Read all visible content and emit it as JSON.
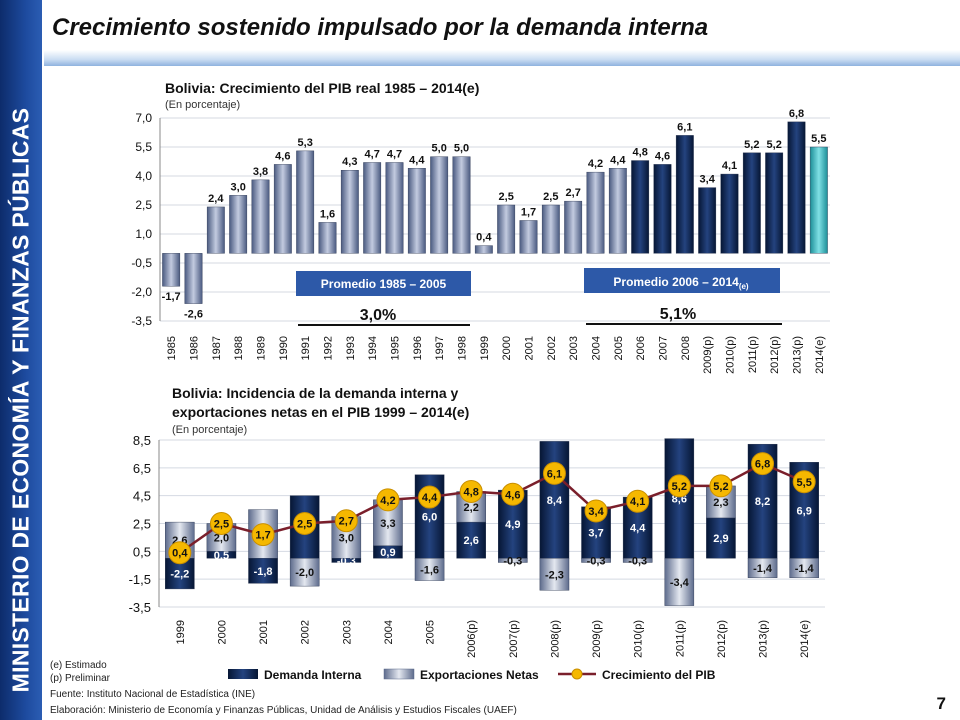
{
  "header": {
    "title": "Crecimiento sostenido impulsado por la demanda interna",
    "sidebar_text": "MINISTERIO DE ECONOMÍA Y FINANZAS PÚBLICAS",
    "page_number": "7"
  },
  "chart_data": [
    {
      "type": "bar",
      "title": "Bolivia: Crecimiento del PIB real  1985 – 2014(e)",
      "subtitle": "(En porcentaje)",
      "categories": [
        "1985",
        "1986",
        "1987",
        "1988",
        "1989",
        "1990",
        "1991",
        "1992",
        "1993",
        "1994",
        "1995",
        "1996",
        "1997",
        "1998",
        "1999",
        "2000",
        "2001",
        "2002",
        "2003",
        "2004",
        "2005",
        "2006",
        "2007",
        "2008",
        "2009(p)",
        "2010(p)",
        "2011(p)",
        "2012(p)",
        "2013(p)",
        "2014(e)"
      ],
      "values": [
        -1.7,
        -2.6,
        2.4,
        3.0,
        3.8,
        4.6,
        5.3,
        1.6,
        4.3,
        4.7,
        4.7,
        4.4,
        5.0,
        5.0,
        0.4,
        2.5,
        1.7,
        2.5,
        2.7,
        4.2,
        4.4,
        4.8,
        4.6,
        6.1,
        3.4,
        4.1,
        5.2,
        5.2,
        6.8,
        5.5
      ],
      "value_labels": [
        "-1,7",
        "-2,6",
        "2,4",
        "3,0",
        "3,8",
        "4,6",
        "5,3",
        "1,6",
        "4,3",
        "4,7",
        "4,7",
        "4,4",
        "5,0",
        "5,0",
        "0,4",
        "2,5",
        "1,7",
        "2,5",
        "2,7",
        "4,2",
        "4,4",
        "4,8",
        "4,6",
        "6,1",
        "3,4",
        "4,1",
        "5,2",
        "5,2",
        "6,8",
        "5,5"
      ],
      "yticks": [
        "7,0",
        "5,5",
        "4,0",
        "2,5",
        "1,0",
        "-0,5",
        "-2,0",
        "-3,5"
      ],
      "ylim": [
        -3.5,
        7.0
      ],
      "colors": {
        "period1": "#7f8fb0",
        "period2": "#0d2a5c",
        "estimate": "#49c2c9"
      },
      "annotations": [
        {
          "label": "Promedio 1985 – 2005",
          "value": "3,0%"
        },
        {
          "label": "Promedio 2006 – 2014",
          "label_sub": "(e)",
          "value": "5,1%"
        }
      ]
    },
    {
      "type": "bar",
      "stacked": true,
      "title_line1": "Bolivia: Incidencia de la demanda interna y",
      "title_line2": "exportaciones netas en el PIB  1999 – 2014(e)",
      "subtitle": "(En porcentaje)",
      "categories": [
        "1999",
        "2000",
        "2001",
        "2002",
        "2003",
        "2004",
        "2005",
        "2006(p)",
        "2007(p)",
        "2008(p)",
        "2009(p)",
        "2010(p)",
        "2011(p)",
        "2012(p)",
        "2013(p)",
        "2014(e)"
      ],
      "yticks": [
        "8,5",
        "6,5",
        "4,5",
        "2,5",
        "0,5",
        "-1,5",
        "-3,5"
      ],
      "ylim": [
        -3.5,
        8.5
      ],
      "series": [
        {
          "name": "Demanda Interna",
          "color": "#0d2a5c",
          "values": [
            -2.2,
            0.5,
            -1.8,
            4.5,
            -0.3,
            0.9,
            6.0,
            2.6,
            4.9,
            8.4,
            3.7,
            4.4,
            8.6,
            2.9,
            8.2,
            6.9
          ],
          "labels": [
            "-2,2",
            "0,5",
            "-1,8",
            "4,5",
            "-0,3",
            "0,9",
            "6,0",
            "2,6",
            "4,9",
            "8,4",
            "3,7",
            "4,4",
            "8,6",
            "2,9",
            "8,2",
            "6,9"
          ]
        },
        {
          "name": "Exportaciones Netas",
          "color": "#aeb8cb",
          "values": [
            2.6,
            2.0,
            3.5,
            -2.0,
            3.0,
            3.3,
            -1.6,
            2.2,
            -0.3,
            -2.3,
            -0.3,
            -0.3,
            -3.4,
            2.3,
            -1.4,
            -1.4
          ],
          "labels": [
            "2,6",
            "2,0",
            "3,5",
            "-2,0",
            "3,0",
            "3,3",
            "-1,6",
            "2,2",
            "-0,3",
            "-2,3",
            "-0,3",
            "-0,3",
            "-3,4",
            "2,3",
            "-1,4",
            "-1,4"
          ]
        },
        {
          "name": "Crecimiento del PIB",
          "type": "line",
          "color": "#f5b800",
          "line_color": "#7a1f2b",
          "values": [
            0.4,
            2.5,
            1.7,
            2.5,
            2.7,
            4.2,
            4.4,
            4.8,
            4.6,
            6.1,
            3.4,
            4.1,
            5.2,
            5.2,
            6.8,
            5.5
          ],
          "labels": [
            "0,4",
            "2,5",
            "1,7",
            "2,5",
            "2,7",
            "4,2",
            "4,4",
            "4,8",
            "4,6",
            "6,1",
            "3,4",
            "4,1",
            "5,2",
            "5,2",
            "6,8",
            "5,5"
          ]
        }
      ]
    }
  ],
  "notes": [
    "(e) Estimado",
    "(p) Preliminar",
    "Fuente: Instituto Nacional de Estadística (INE)",
    "Elaboración: Ministerio de Economía y Finanzas Públicas, Unidad de Análisis y Estudios Fiscales (UAEF)"
  ]
}
